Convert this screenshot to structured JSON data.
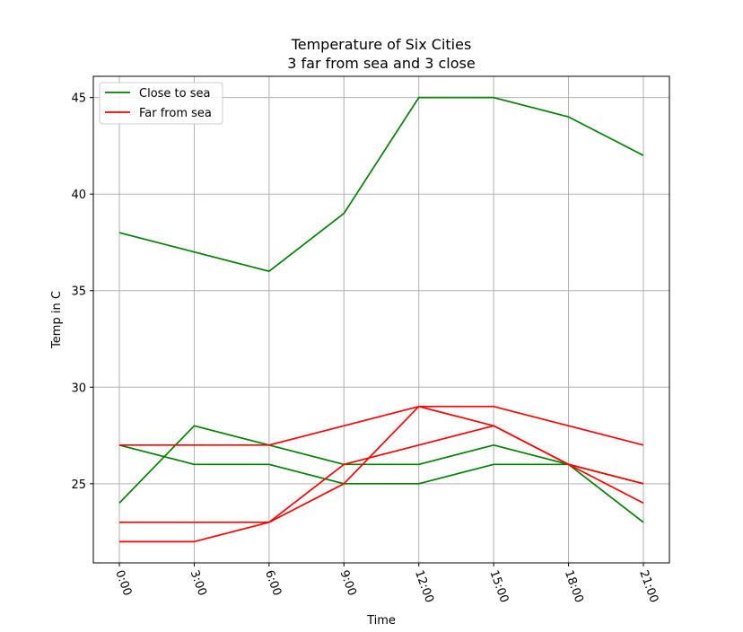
{
  "chart_data": {
    "type": "line",
    "title": "Temperature of Six Cities",
    "subtitle": "3 far from sea and 3 close",
    "xlabel": "Time",
    "ylabel": "Temp in C",
    "categories": [
      "0:00",
      "3:00",
      "6:00",
      "9:00",
      "12:00",
      "15:00",
      "18:00",
      "21:00"
    ],
    "ylim": [
      20.9,
      46.1
    ],
    "yticks": [
      25,
      30,
      35,
      40,
      45
    ],
    "grid": true,
    "legend_position": "top-left",
    "legend": [
      {
        "label": "Close to sea",
        "color": "#008000"
      },
      {
        "label": "Far from sea",
        "color": "#ff0000"
      }
    ],
    "series": [
      {
        "group": "Close to sea",
        "color": "#008000",
        "values": [
          38,
          37,
          36,
          39,
          45,
          45,
          44,
          42
        ]
      },
      {
        "group": "Close to sea",
        "color": "#008000",
        "values": [
          24,
          28,
          27,
          26,
          26,
          27,
          26,
          23
        ]
      },
      {
        "group": "Close to sea",
        "color": "#008000",
        "values": [
          27,
          26,
          26,
          25,
          25,
          26,
          26,
          25
        ]
      },
      {
        "group": "Far from sea",
        "color": "#ff0000",
        "values": [
          27,
          27,
          27,
          28,
          29,
          29,
          28,
          27
        ]
      },
      {
        "group": "Far from sea",
        "color": "#ff0000",
        "values": [
          23,
          23,
          23,
          25,
          29,
          28,
          26,
          24
        ]
      },
      {
        "group": "Far from sea",
        "color": "#ff0000",
        "values": [
          22,
          22,
          23,
          26,
          27,
          28,
          26,
          25
        ]
      }
    ]
  }
}
